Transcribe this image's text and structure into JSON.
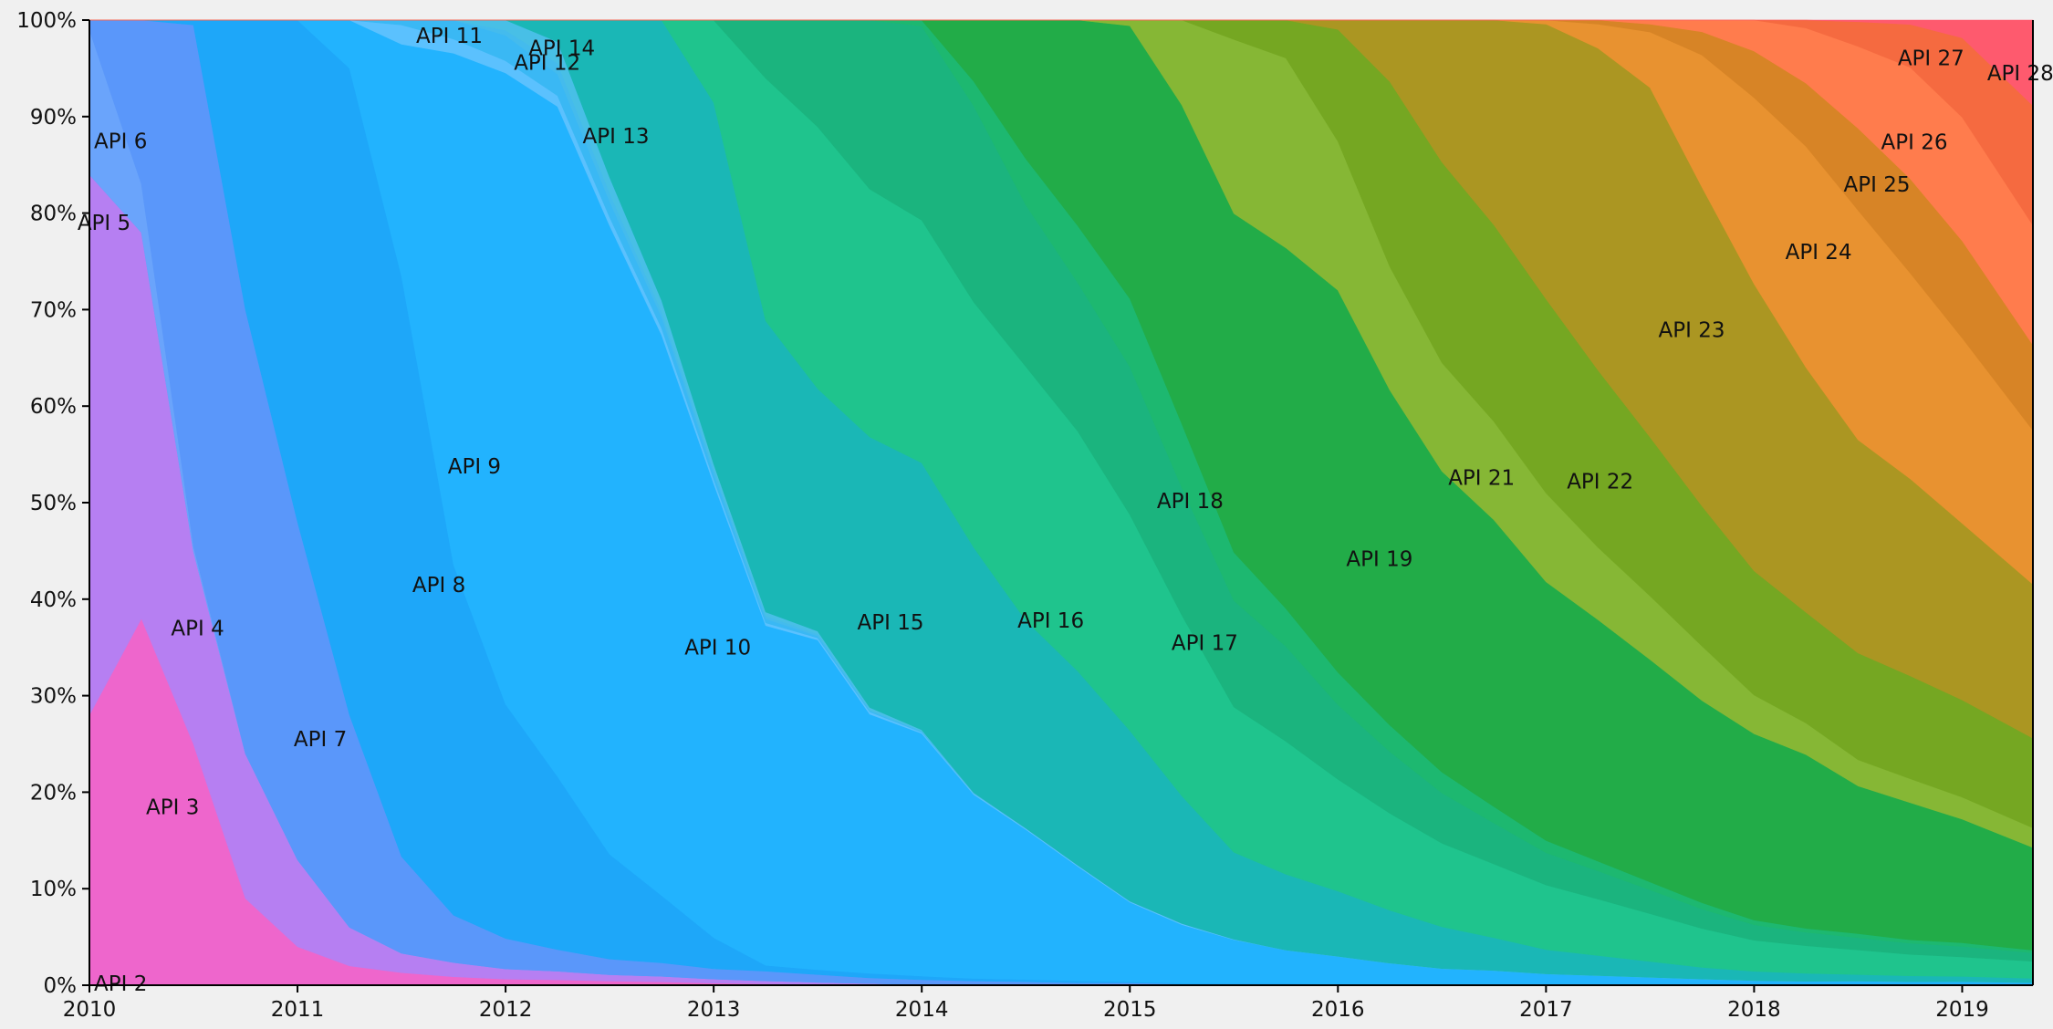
{
  "chart_data": {
    "type": "area",
    "stacking": "percent",
    "xlim": [
      2010,
      2019.34
    ],
    "ylim": [
      0,
      100
    ],
    "x_ticks": [
      "2010",
      "2011",
      "2012",
      "2013",
      "2014",
      "2015",
      "2016",
      "2017",
      "2018",
      "2019"
    ],
    "y_ticks": [
      "0%",
      "10%",
      "20%",
      "30%",
      "40%",
      "50%",
      "60%",
      "70%",
      "80%",
      "90%",
      "100%"
    ],
    "grid": false,
    "legend": "inline labels",
    "x": [
      2010.0,
      2010.25,
      2010.5,
      2010.75,
      2011.0,
      2011.25,
      2011.5,
      2011.75,
      2012.0,
      2012.25,
      2012.5,
      2012.75,
      2013.0,
      2013.25,
      2013.5,
      2013.75,
      2014.0,
      2014.25,
      2014.5,
      2014.75,
      2015.0,
      2015.25,
      2015.5,
      2015.75,
      2016.0,
      2016.25,
      2016.5,
      2016.75,
      2017.0,
      2017.25,
      2017.5,
      2017.75,
      2018.0,
      2018.25,
      2018.5,
      2018.75,
      2019.0,
      2019.34
    ],
    "series": [
      {
        "name": "API 2",
        "color": "#ee66cc",
        "values": [
          28,
          38,
          25,
          9,
          4,
          2,
          1.3,
          0.9,
          0.6,
          0.5,
          0.4,
          0.3,
          0.2,
          0.15,
          0.1,
          0.05,
          0,
          0,
          0,
          0,
          0,
          0,
          0,
          0,
          0,
          0,
          0,
          0,
          0,
          0,
          0,
          0,
          0,
          0,
          0,
          0,
          0,
          0
        ]
      },
      {
        "name": "API 3",
        "color": "#b67ff2",
        "values": [
          56,
          40,
          20,
          15,
          9,
          4,
          2,
          1.5,
          1.0,
          0.8,
          0.6,
          0.5,
          0.4,
          0.3,
          0.2,
          0.1,
          0.05,
          0.05,
          0,
          0,
          0,
          0,
          0,
          0,
          0,
          0,
          0,
          0,
          0,
          0,
          0,
          0,
          0,
          0,
          0,
          0,
          0,
          0
        ]
      },
      {
        "name": "API 4",
        "color": "#b67ff2",
        "values": [
          0,
          0,
          0,
          0,
          0,
          0,
          0,
          0,
          0,
          0,
          0,
          0,
          0,
          0,
          0,
          0,
          0,
          0,
          0,
          0,
          0,
          0,
          0,
          0,
          0,
          0,
          0,
          0,
          0,
          0,
          0,
          0,
          0,
          0,
          0,
          0,
          0,
          0
        ]
      },
      {
        "name": "API 5",
        "color": "#5a97fa",
        "values": [
          0,
          0,
          0,
          0,
          0,
          0,
          0,
          0,
          0,
          0,
          0,
          0,
          0,
          0,
          0,
          0,
          0,
          0,
          0,
          0,
          0,
          0,
          0,
          0,
          0,
          0,
          0,
          0,
          0,
          0,
          0,
          0,
          0,
          0,
          0,
          0,
          0,
          0
        ]
      },
      {
        "name": "API 6",
        "color": "#6aa4fb",
        "values": [
          15,
          5,
          0.5,
          0,
          0,
          0,
          0,
          0,
          0,
          0,
          0,
          0,
          0,
          0,
          0,
          0,
          0,
          0,
          0,
          0,
          0,
          0,
          0,
          0,
          0,
          0,
          0,
          0,
          0,
          0,
          0,
          0,
          0,
          0,
          0,
          0,
          0,
          0
        ]
      },
      {
        "name": "API 7",
        "color": "#5a97fa",
        "values": [
          1,
          17,
          54,
          46,
          35,
          22,
          10,
          5,
          3,
          2,
          1.5,
          1.2,
          1.0,
          1.0,
          0.8,
          0.5,
          0.4,
          0.3,
          0.3,
          0.2,
          0.2,
          0.1,
          0.1,
          0.1,
          0.05,
          0,
          0,
          0,
          0,
          0,
          0,
          0,
          0,
          0,
          0,
          0,
          0,
          0
        ]
      },
      {
        "name": "API 8",
        "color": "#1ea7f9",
        "values": [
          0,
          0,
          0.5,
          30,
          52,
          67,
          60,
          37,
          23,
          16,
          10,
          6,
          3,
          0.6,
          0.5,
          0.4,
          0.3,
          0.2,
          0.2,
          0.2,
          0.1,
          0.1,
          0.1,
          0.1,
          0.05,
          0,
          0,
          0,
          0,
          0,
          0,
          0,
          0,
          0,
          0,
          0,
          0,
          0
        ]
      },
      {
        "name": "API 9",
        "color": "#22b3fe",
        "values": [
          0,
          0,
          0,
          0,
          0,
          5,
          24,
          54,
          62,
          62,
          60,
          50,
          44,
          35,
          34,
          23,
          20,
          15,
          13,
          10,
          7,
          5.5,
          4.5,
          3.5,
          3,
          2.5,
          2,
          1.8,
          1.4,
          1.2,
          1.0,
          0.8,
          0.6,
          0.5,
          0.5,
          0.4,
          0.4,
          0.3
        ]
      },
      {
        "name": "API 10",
        "color": "#5bc1fe",
        "values": [
          0,
          0,
          0,
          0,
          0,
          0,
          2,
          1.5,
          1.2,
          1.0,
          0.8,
          0.6,
          0.4,
          0.3,
          0.2,
          0.2,
          0.1,
          0.1,
          0.1,
          0.1,
          0.1,
          0.1,
          0.05,
          0,
          0,
          0,
          0,
          0,
          0,
          0,
          0,
          0,
          0,
          0,
          0,
          0,
          0,
          0
        ]
      },
      {
        "name": "API 11",
        "color": "#3ab8f4",
        "values": [
          0,
          0,
          0,
          0,
          0,
          0,
          0.5,
          2,
          2.5,
          2,
          1.5,
          1.0,
          0.6,
          0.4,
          0.2,
          0.1,
          0.05,
          0,
          0,
          0,
          0,
          0,
          0,
          0,
          0,
          0,
          0,
          0,
          0,
          0,
          0,
          0,
          0,
          0,
          0,
          0,
          0,
          0
        ]
      },
      {
        "name": "API 12",
        "color": "#44bbed",
        "values": [
          0,
          0,
          0,
          0,
          0,
          0,
          0,
          0,
          0.5,
          1.0,
          0.8,
          0.5,
          0.4,
          0.3,
          0.2,
          0.1,
          0.05,
          0,
          0,
          0,
          0,
          0,
          0,
          0,
          0,
          0,
          0,
          0,
          0,
          0,
          0,
          0,
          0,
          0,
          0,
          0,
          0,
          0
        ]
      },
      {
        "name": "API 13",
        "color": "#48bfe6",
        "values": [
          0,
          0,
          0,
          0,
          0,
          0,
          0,
          0,
          1,
          2,
          1.5,
          1,
          0.5,
          0.4,
          0.3,
          0.2,
          0.1,
          0.05,
          0,
          0,
          0,
          0,
          0,
          0,
          0,
          0,
          0,
          0,
          0,
          0,
          0,
          0,
          0,
          0,
          0,
          0,
          0,
          0
        ]
      },
      {
        "name": "API 14",
        "color": "#1ab7b6",
        "values": [
          0,
          0,
          0,
          0,
          0,
          0,
          0,
          0,
          0,
          2,
          15,
          25,
          35,
          30,
          25,
          24,
          22,
          20,
          18,
          17,
          15,
          12,
          9,
          8,
          7,
          6,
          5,
          4,
          3,
          2.5,
          2.0,
          1.5,
          1.2,
          1.0,
          0.8,
          0.7,
          0.6,
          0.5
        ]
      },
      {
        "name": "API 15",
        "color": "#1fc48d",
        "values": [
          0,
          0,
          0,
          0,
          0,
          0,
          0,
          0,
          0,
          0,
          0,
          0,
          8,
          25,
          27,
          22,
          20,
          20,
          22,
          21,
          19,
          17,
          15,
          14,
          12,
          11,
          10,
          9,
          8,
          7,
          6,
          5,
          4,
          3.5,
          3,
          2.5,
          2.2,
          2.0
        ]
      },
      {
        "name": "API 16",
        "color": "#1bb47e",
        "values": [
          0,
          0,
          0,
          0,
          0,
          0,
          0,
          0,
          0,
          0,
          0,
          0,
          0,
          6,
          11,
          15,
          16,
          16,
          14,
          13,
          13,
          12,
          11,
          10,
          8,
          7,
          6,
          5,
          4,
          3.5,
          3,
          2.5,
          2,
          1.7,
          1.5,
          1.3,
          1.2,
          1.0
        ]
      },
      {
        "name": "API 17",
        "color": "#1db870",
        "values": [
          0,
          0,
          0,
          0,
          0,
          0,
          0,
          0,
          0,
          0,
          0,
          0,
          0,
          0,
          0,
          0,
          0.5,
          2,
          4,
          5,
          6,
          6,
          5,
          4,
          3.5,
          3,
          2.5,
          2,
          1.5,
          1.2,
          1.0,
          0.8,
          0.6,
          0.5,
          0.5,
          0.4,
          0.4,
          0.3
        ]
      },
      {
        "name": "API 18",
        "color": "#22ac48",
        "values": [
          0,
          0,
          0,
          0,
          0,
          0,
          0,
          0,
          0,
          0,
          0,
          0,
          0,
          0,
          0,
          0,
          0,
          5,
          12,
          18,
          24,
          30,
          35,
          38,
          41,
          38,
          36,
          35,
          32,
          30,
          28,
          26,
          24,
          22,
          18,
          16,
          14,
          12
        ]
      },
      {
        "name": "API 19",
        "color": "#86b735",
        "values": [
          0,
          0,
          0,
          0,
          0,
          0,
          0,
          0,
          0,
          0,
          0,
          0,
          0,
          0,
          0,
          0,
          0,
          0,
          0,
          0,
          0.5,
          8,
          18,
          20,
          16,
          14,
          13,
          12,
          11,
          9,
          8,
          7,
          5,
          4,
          3.2,
          2.8,
          2.5,
          2.3
        ]
      },
      {
        "name": "API 21",
        "color": "#75a722",
        "values": [
          0,
          0,
          0,
          0,
          0,
          0,
          0,
          0,
          0,
          0,
          0,
          0,
          0,
          0,
          0,
          0,
          0,
          0,
          0,
          0,
          0,
          0,
          2,
          4,
          12,
          21,
          24,
          24,
          24,
          22,
          20,
          18,
          16,
          14,
          13,
          12,
          11,
          10.5
        ]
      },
      {
        "name": "API 22",
        "color": "#ab9622",
        "values": [
          0,
          0,
          0,
          0,
          0,
          0,
          0,
          0,
          0,
          0,
          0,
          0,
          0,
          0,
          0,
          0,
          0,
          0,
          0,
          0,
          0,
          0,
          0,
          0,
          1,
          7,
          17,
          25,
          34,
          40,
          44,
          41,
          37,
          31,
          26,
          23,
          20,
          18
        ]
      },
      {
        "name": "API 23",
        "color": "#e89230",
        "values": [
          0,
          0,
          0,
          0,
          0,
          0,
          0,
          0,
          0,
          0,
          0,
          0,
          0,
          0,
          0,
          0,
          0,
          0,
          0,
          0,
          0,
          0,
          0,
          0,
          0,
          0,
          0,
          0,
          0.5,
          3,
          7,
          17,
          24,
          28,
          28,
          24,
          21,
          18
        ]
      },
      {
        "name": "API 24",
        "color": "#d78426",
        "values": [
          0,
          0,
          0,
          0,
          0,
          0,
          0,
          0,
          0,
          0,
          0,
          0,
          0,
          0,
          0,
          0,
          0,
          0,
          0,
          0,
          0,
          0,
          0,
          0,
          0,
          0,
          0,
          0,
          0,
          0.5,
          1,
          3,
          6,
          8,
          10,
          11,
          11,
          10
        ]
      },
      {
        "name": "API 25",
        "color": "#ff7c4d",
        "values": [
          0,
          0,
          0,
          0,
          0,
          0,
          0,
          0,
          0,
          0,
          0,
          0,
          0,
          0,
          0,
          0,
          0,
          0,
          0,
          0,
          0,
          0,
          0,
          0,
          0,
          0,
          0,
          0,
          0,
          0,
          0.5,
          1.5,
          4,
          7,
          10,
          13,
          14,
          14
        ]
      },
      {
        "name": "API 26",
        "color": "#f56a40",
        "values": [
          0,
          0,
          0,
          0,
          0,
          0,
          0,
          0,
          0,
          0,
          0,
          0,
          0,
          0,
          0,
          0,
          0,
          0,
          0,
          0,
          0,
          0,
          0,
          0,
          0,
          0,
          0,
          0,
          0,
          0,
          0,
          0,
          0,
          1,
          3,
          5,
          9,
          14
        ]
      },
      {
        "name": "API 27",
        "color": "#fe5a6e",
        "values": [
          0,
          0,
          0,
          0,
          0,
          0,
          0,
          0,
          0,
          0,
          0,
          0,
          0,
          0,
          0,
          0,
          0,
          0,
          0,
          0,
          0,
          0,
          0,
          0,
          0,
          0,
          0,
          0,
          0,
          0,
          0,
          0,
          0,
          0,
          0.2,
          0.5,
          2,
          10
        ]
      }
    ],
    "labels": [
      {
        "text": "API 2",
        "x": 2010.15,
        "y": 0.2
      },
      {
        "text": "API 3",
        "x": 2010.4,
        "y": 18.5
      },
      {
        "text": "API 4",
        "x": 2010.52,
        "y": 37
      },
      {
        "text": "API 5",
        "x": 2010.07,
        "y": 79
      },
      {
        "text": "API 6",
        "x": 2010.15,
        "y": 87.5
      },
      {
        "text": "API 7",
        "x": 2011.11,
        "y": 25.5
      },
      {
        "text": "API 8",
        "x": 2011.68,
        "y": 41.5
      },
      {
        "text": "API 9",
        "x": 2011.85,
        "y": 53.8
      },
      {
        "text": "API 10",
        "x": 2013.02,
        "y": 35
      },
      {
        "text": "API 11",
        "x": 2011.73,
        "y": 98.4
      },
      {
        "text": "API 12",
        "x": 2012.2,
        "y": 95.6
      },
      {
        "text": "API 13",
        "x": 2012.53,
        "y": 88
      },
      {
        "text": "API 14",
        "x": 2012.27,
        "y": 97.1
      },
      {
        "text": "API 15",
        "x": 2013.85,
        "y": 37.6
      },
      {
        "text": "API 16",
        "x": 2014.62,
        "y": 37.8
      },
      {
        "text": "API 17",
        "x": 2015.36,
        "y": 35.5
      },
      {
        "text": "API 18",
        "x": 2015.29,
        "y": 50.2
      },
      {
        "text": "API 19",
        "x": 2016.2,
        "y": 44.2
      },
      {
        "text": "API 21",
        "x": 2016.69,
        "y": 52.6
      },
      {
        "text": "API 22",
        "x": 2017.26,
        "y": 52.2
      },
      {
        "text": "API 23",
        "x": 2017.7,
        "y": 67.9
      },
      {
        "text": "API 24",
        "x": 2018.31,
        "y": 76
      },
      {
        "text": "API 25",
        "x": 2018.59,
        "y": 83
      },
      {
        "text": "API 26",
        "x": 2018.77,
        "y": 87.4
      },
      {
        "text": "API 27",
        "x": 2018.85,
        "y": 96.1
      },
      {
        "text": "API 28",
        "x": 2019.28,
        "y": 94.5
      }
    ]
  }
}
